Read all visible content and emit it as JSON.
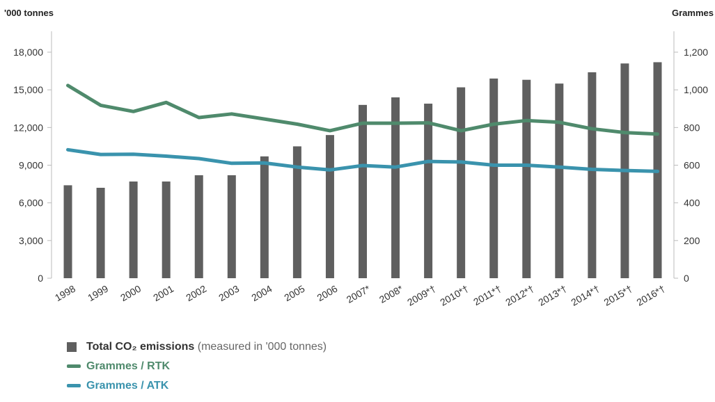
{
  "chart_data": {
    "type": "bar",
    "categories": [
      "1998",
      "1999",
      "2000",
      "2001",
      "2002",
      "2003",
      "2004",
      "2005",
      "2006",
      "2007*",
      "2008*",
      "2009*†",
      "2010*†",
      "2011*†",
      "2012*†",
      "2013*†",
      "2014*†",
      "2015*†",
      "2016*†"
    ],
    "y_left": {
      "label": "'000 tonnes",
      "lim": [
        0,
        18000
      ],
      "ticks": [
        "0",
        "3,000",
        "6,000",
        "9,000",
        "12,000",
        "15,000",
        "18,000"
      ]
    },
    "y_right": {
      "label": "Grammes",
      "lim": [
        0,
        1200
      ],
      "ticks": [
        "0",
        "200",
        "400",
        "600",
        "800",
        "1,000",
        "1,200"
      ]
    },
    "series": [
      {
        "name": "Total CO₂ emissions",
        "type": "bar",
        "axis": "left",
        "color": "#5f5f5f",
        "values": [
          7400,
          7200,
          7700,
          7700,
          8200,
          8200,
          9700,
          10500,
          11400,
          13800,
          14400,
          13900,
          15200,
          15900,
          15800,
          15500,
          16400,
          17100,
          17200
        ]
      },
      {
        "name": "Grammes / RTK",
        "type": "line",
        "axis": "right",
        "color": "#4f8a6c",
        "values": [
          1023,
          918,
          885,
          933,
          853,
          872,
          845,
          818,
          783,
          823,
          823,
          825,
          783,
          818,
          837,
          828,
          793,
          773,
          765
        ]
      },
      {
        "name": "Grammes / ATK",
        "type": "line",
        "axis": "right",
        "color": "#3a93ad",
        "values": [
          682,
          657,
          658,
          648,
          635,
          610,
          612,
          590,
          575,
          598,
          590,
          620,
          617,
          600,
          600,
          590,
          578,
          572,
          567
        ]
      }
    ],
    "grid": false,
    "legend_position": "bottom-left"
  },
  "legend": {
    "bars_label_bold": "Total CO₂ emissions",
    "bars_label_note": "(measured in '000 tonnes)",
    "rtk_label": "Grammes / RTK",
    "atk_label": "Grammes / ATK"
  }
}
